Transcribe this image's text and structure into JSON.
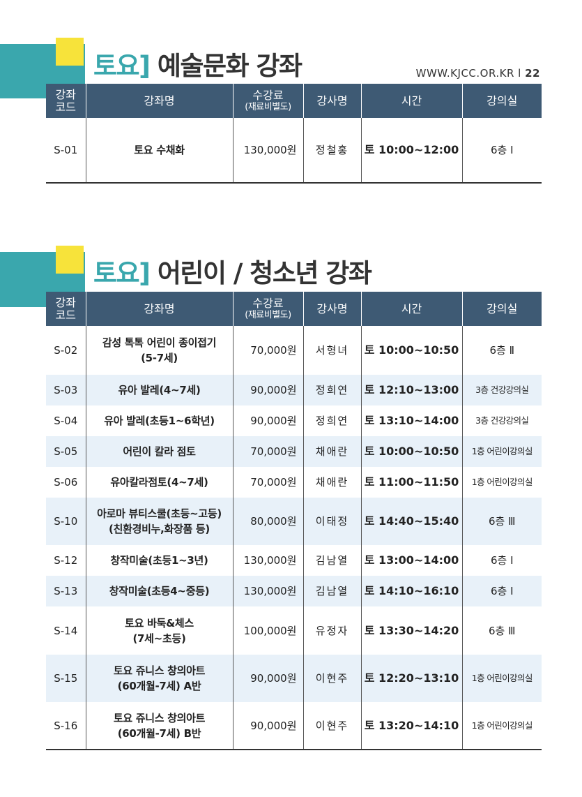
{
  "site": {
    "url": "WWW.KJCC.OR.KR",
    "separator": "l",
    "page": "22"
  },
  "sections": [
    {
      "title_keyword": "토요]",
      "title_rest": "예술문화 강좌",
      "headers": {
        "code": "강좌\n코드",
        "name": "강좌명",
        "fee": "수강료",
        "fee_note": "(재료비별도)",
        "instructor": "강사명",
        "time": "시간",
        "room": "강의실"
      },
      "rows": [
        {
          "code": "S-01",
          "name": "토요 수채화",
          "fee": "130,000원",
          "instructor": "정철홍",
          "time": "토 10:00~12:00",
          "room": "6층 Ⅰ"
        }
      ]
    },
    {
      "title_keyword": "토요]",
      "title_rest": "어린이 / 청소년 강좌",
      "headers": {
        "code": "강좌\n코드",
        "name": "강좌명",
        "fee": "수강료",
        "fee_note": "(재료비별도)",
        "instructor": "강사명",
        "time": "시간",
        "room": "강의실"
      },
      "rows": [
        {
          "code": "S-02",
          "name": "감성 톡톡 어린이 종이접기\n(5-7세)",
          "fee": "70,000원",
          "instructor": "서형녀",
          "time": "토 10:00~10:50",
          "room": "6층 Ⅱ"
        },
        {
          "code": "S-03",
          "name": "유아 발레(4~7세)",
          "fee": "90,000원",
          "instructor": "정희연",
          "time": "토 12:10~13:00",
          "room": "3층 건강강의실"
        },
        {
          "code": "S-04",
          "name": "유아 발레(초등1~6학년)",
          "fee": "90,000원",
          "instructor": "정희연",
          "time": "토 13:10~14:00",
          "room": "3층 건강강의실"
        },
        {
          "code": "S-05",
          "name": "어린이 칼라 점토",
          "fee": "70,000원",
          "instructor": "채애란",
          "time": "토 10:00~10:50",
          "room": "1층 어린이강의실"
        },
        {
          "code": "S-06",
          "name": "유아칼라점토(4~7세)",
          "fee": "70,000원",
          "instructor": "채애란",
          "time": "토 11:00~11:50",
          "room": "1층 어린이강의실"
        },
        {
          "code": "S-10",
          "name": "아로마 뷰티스쿨(초등~고등)\n(친환경비누,화장품 등)",
          "fee": "80,000원",
          "instructor": "이태정",
          "time": "토 14:40~15:40",
          "room": "6층 Ⅲ"
        },
        {
          "code": "S-12",
          "name": "창작미술(초등1~3년)",
          "fee": "130,000원",
          "instructor": "김남열",
          "time": "토 13:00~14:00",
          "room": "6층 Ⅰ"
        },
        {
          "code": "S-13",
          "name": "창작미술(초등4~중등)",
          "fee": "130,000원",
          "instructor": "김남열",
          "time": "토 14:10~16:10",
          "room": "6층 Ⅰ"
        },
        {
          "code": "S-14",
          "name": "토요 바둑&체스\n(7세~초등)",
          "fee": "100,000원",
          "instructor": "유정자",
          "time": "토 13:30~14:20",
          "room": "6층 Ⅲ"
        },
        {
          "code": "S-15",
          "name": "토요 쥬니스 창의아트\n(60개월-7세) A반",
          "fee": "90,000원",
          "instructor": "이현주",
          "time": "토 12:20~13:10",
          "room": "1층 어린이강의실"
        },
        {
          "code": "S-16",
          "name": "토요 쥬니스 창의아트\n(60개월-7세) B반",
          "fee": "90,000원",
          "instructor": "이현주",
          "time": "토 13:20~14:10",
          "room": "1층 어린이강의실"
        }
      ]
    }
  ],
  "colors": {
    "accent_teal": "#3aa7ad",
    "accent_yellow": "#f7e33a",
    "header_navy": "#3e5a74",
    "row_alt": "#e8f1f9"
  }
}
